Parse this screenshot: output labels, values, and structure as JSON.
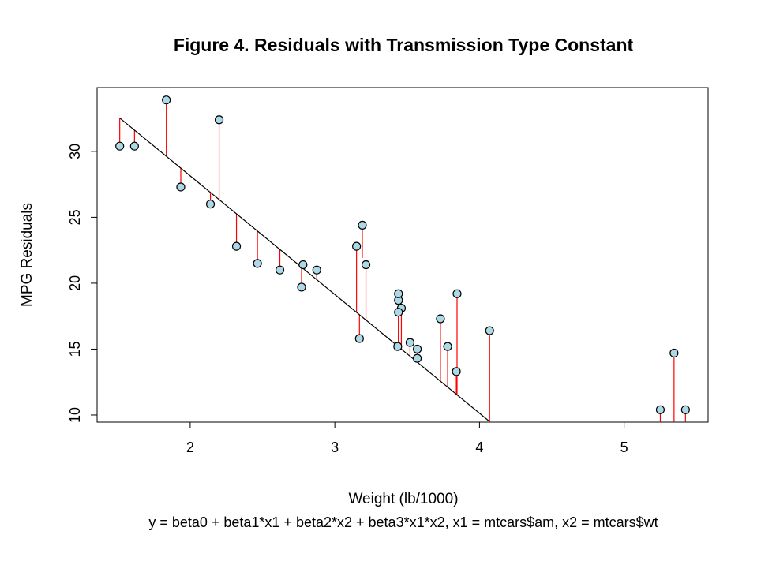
{
  "chart_data": {
    "type": "scatter",
    "title": "Figure 4. Residuals with Transmission Type Constant",
    "xlabel": "Weight (lb/1000)",
    "ylabel": "MPG Residuals",
    "subtitle": "y = beta0 + beta1*x1 + beta2*x2 + beta3*x1*x2, x1 = mtcars$am, x2 = mtcars$wt",
    "xlim": [
      1.513,
      5.424
    ],
    "ylim": [
      10.4,
      33.9
    ],
    "xticks": [
      2,
      3,
      4,
      5
    ],
    "yticks": [
      10,
      15,
      20,
      25,
      30
    ],
    "grid": false,
    "legend": "none",
    "fit_line": {
      "x1": 1.513,
      "y1": 32.53,
      "x2": 4.065,
      "y2": 9.55
    },
    "points": [
      {
        "x": 2.62,
        "y": 21.0,
        "fitted": 22.56
      },
      {
        "x": 2.875,
        "y": 21.0,
        "fitted": 20.25
      },
      {
        "x": 2.32,
        "y": 22.8,
        "fitted": 25.29
      },
      {
        "x": 3.215,
        "y": 21.4,
        "fitted": 17.19
      },
      {
        "x": 3.44,
        "y": 18.7,
        "fitted": 15.17
      },
      {
        "x": 3.46,
        "y": 18.1,
        "fitted": 14.99
      },
      {
        "x": 3.57,
        "y": 14.3,
        "fitted": 14.0
      },
      {
        "x": 3.19,
        "y": 24.4,
        "fitted": 21.92
      },
      {
        "x": 3.15,
        "y": 22.8,
        "fitted": 17.77
      },
      {
        "x": 3.44,
        "y": 19.2,
        "fitted": 15.17
      },
      {
        "x": 3.44,
        "y": 17.8,
        "fitted": 15.17
      },
      {
        "x": 4.07,
        "y": 16.4,
        "fitted": 9.5
      },
      {
        "x": 3.73,
        "y": 17.3,
        "fitted": 12.55
      },
      {
        "x": 3.78,
        "y": 15.2,
        "fitted": 12.1
      },
      {
        "x": 5.25,
        "y": 10.4,
        "fitted": 9.5
      },
      {
        "x": 5.424,
        "y": 10.4,
        "fitted": 9.5
      },
      {
        "x": 5.345,
        "y": 14.7,
        "fitted": 9.5
      },
      {
        "x": 2.2,
        "y": 32.4,
        "fitted": 26.37
      },
      {
        "x": 1.615,
        "y": 30.4,
        "fitted": 31.63
      },
      {
        "x": 1.835,
        "y": 33.9,
        "fitted": 29.64
      },
      {
        "x": 2.465,
        "y": 21.5,
        "fitted": 23.96
      },
      {
        "x": 3.52,
        "y": 15.5,
        "fitted": 14.45
      },
      {
        "x": 3.435,
        "y": 15.2,
        "fitted": 15.22
      },
      {
        "x": 3.84,
        "y": 13.3,
        "fitted": 11.57
      },
      {
        "x": 3.845,
        "y": 19.2,
        "fitted": 11.52
      },
      {
        "x": 1.935,
        "y": 27.3,
        "fitted": 28.74
      },
      {
        "x": 2.14,
        "y": 26.0,
        "fitted": 26.89
      },
      {
        "x": 1.513,
        "y": 30.4,
        "fitted": 32.53
      },
      {
        "x": 3.17,
        "y": 15.8,
        "fitted": 17.59
      },
      {
        "x": 2.77,
        "y": 19.7,
        "fitted": 21.2
      },
      {
        "x": 3.57,
        "y": 15.0,
        "fitted": 14.0
      },
      {
        "x": 2.78,
        "y": 21.4,
        "fitted": 21.11
      }
    ],
    "colors": {
      "point_fill": "#add8e6",
      "point_stroke": "#000000",
      "residual": "#ff0000",
      "fit_line": "#000000"
    }
  }
}
